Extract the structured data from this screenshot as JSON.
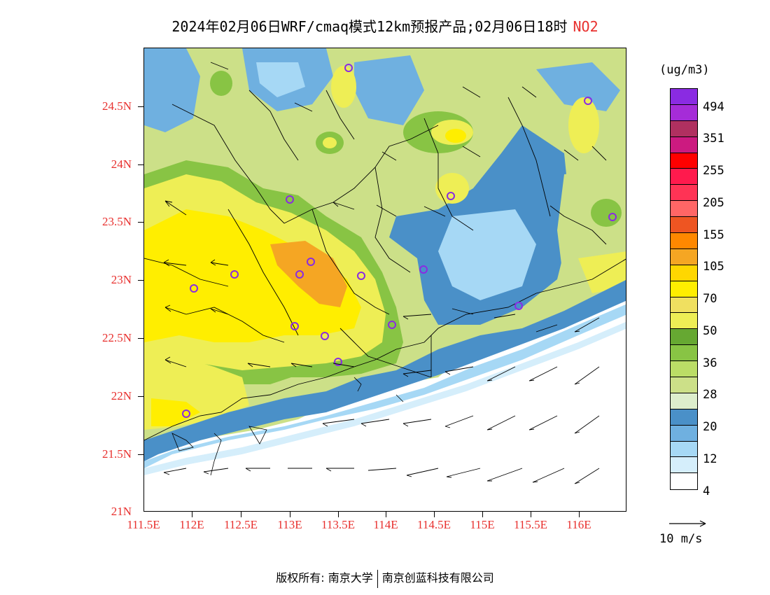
{
  "header": {
    "title": "2024年02月06日WRF/cmaq模式12km预报产品;02月06日18时",
    "species": "NO2"
  },
  "axes": {
    "y_ticks": [
      "24.5N",
      "24N",
      "23.5N",
      "23N",
      "22.5N",
      "22N",
      "21.5N",
      "21N"
    ],
    "x_ticks": [
      "111.5E",
      "112E",
      "112.5E",
      "113E",
      "113.5E",
      "114E",
      "114.5E",
      "115E",
      "115.5E",
      "116E"
    ]
  },
  "legend": {
    "unit": "(ug/m3)",
    "swatches": [
      "#8a2be2",
      "#a52cd8",
      "#b03060",
      "#cc1a80",
      "#ff0000",
      "#ff1a4d",
      "#ff3355",
      "#ff6666",
      "#ee5522",
      "#ff8800",
      "#f5a623",
      "#ffd700",
      "#ffee00",
      "#f0e060",
      "#eeee55",
      "#66a832",
      "#88c444",
      "#bbdd66",
      "#cce088",
      "#ddeecc",
      "#4a90c8",
      "#6fb0e0",
      "#a6d8f5",
      "#d5eefb",
      "#ffffff"
    ],
    "labels": [
      "494",
      "351",
      "255",
      "205",
      "155",
      "105",
      "70",
      "50",
      "36",
      "28",
      "20",
      "12",
      "4"
    ]
  },
  "wind": {
    "reference_label": "10 m/s"
  },
  "footer": {
    "copyright": "版权所有: 南京大学",
    "company": "南京创蓝科技有限公司"
  },
  "colors": {
    "tick_label": "#e8302e",
    "species": "#e8302e"
  }
}
